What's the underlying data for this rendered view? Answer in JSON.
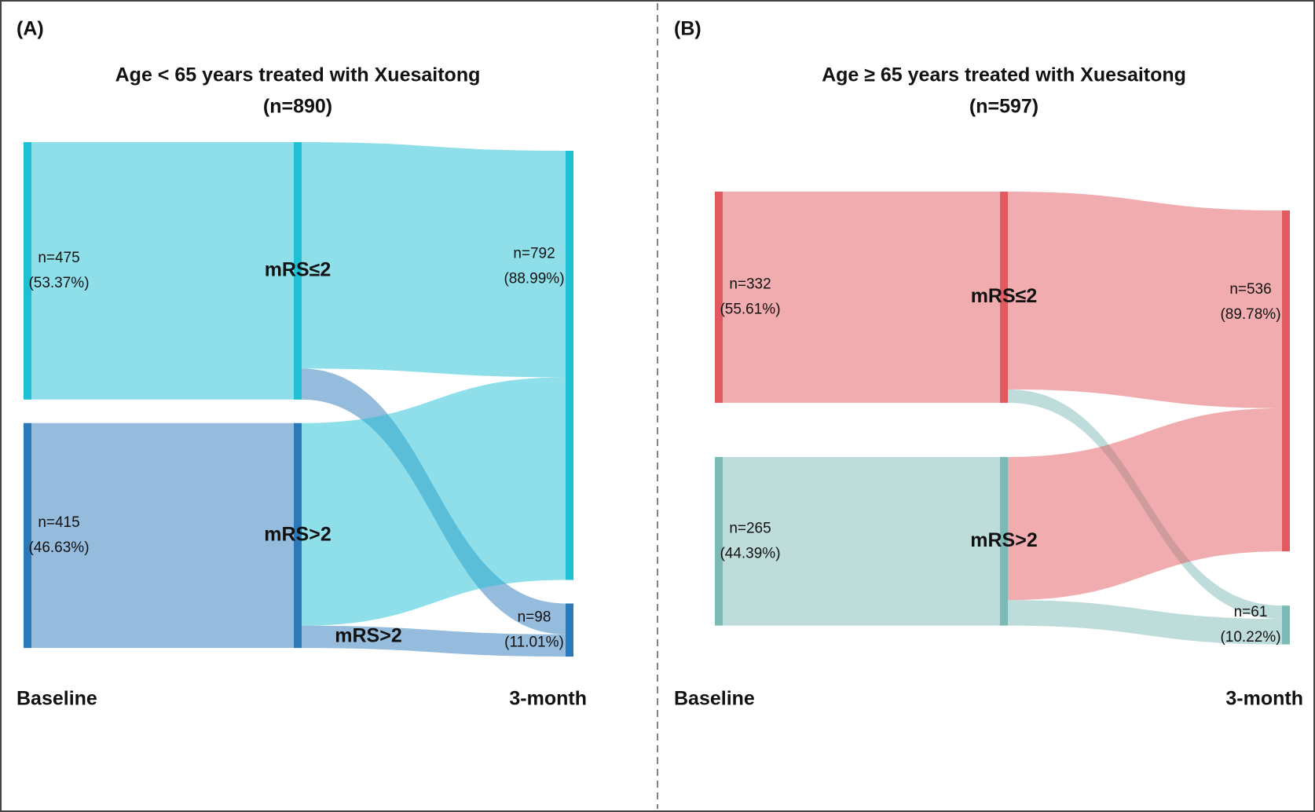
{
  "chart_data": [
    {
      "type": "sankey",
      "panel_label": "(A)",
      "title": "Age < 65 years treated with Xuesaitong",
      "subtitle": "(n=890)",
      "columns": [
        {
          "name": "Baseline",
          "nodes": [
            {
              "name": "mRS≤2",
              "value": 475,
              "value_label": "n=475",
              "percent": 53.37,
              "percent_label": "(53.37%)",
              "color": "#1fbfd6"
            },
            {
              "name": "mRS>2",
              "value": 415,
              "value_label": "n=415",
              "percent": 46.63,
              "percent_label": "(46.63%)",
              "color": "#2b79b9"
            }
          ]
        },
        {
          "name": "3-month",
          "nodes": [
            {
              "value": 792,
              "value_label": "n=792",
              "percent": 88.99,
              "percent_label": "(88.99%)",
              "color": "#1fbfd6"
            },
            {
              "value": 98,
              "value_label": "n=98",
              "percent": 11.01,
              "percent_label": "(11.01%)",
              "color": "#2b79b9"
            }
          ]
        }
      ],
      "links": [
        {
          "source": 0,
          "target": 0,
          "value": 418
        },
        {
          "source": 0,
          "target": 1,
          "value": 57
        },
        {
          "source": 1,
          "target": 0,
          "value": 374
        },
        {
          "source": 1,
          "target": 1,
          "value": 41,
          "label": "mRS>2"
        }
      ]
    },
    {
      "type": "sankey",
      "panel_label": "(B)",
      "title": "Age ≥ 65 years treated with Xuesaitong",
      "subtitle": "(n=597)",
      "columns": [
        {
          "name": "Baseline",
          "nodes": [
            {
              "name": "mRS≤2",
              "value": 332,
              "value_label": "n=332",
              "percent": 55.61,
              "percent_label": "(55.61%)",
              "color": "#e15a60"
            },
            {
              "name": "mRS>2",
              "value": 265,
              "value_label": "n=265",
              "percent": 44.39,
              "percent_label": "(44.39%)",
              "color": "#7cbab5"
            }
          ]
        },
        {
          "name": "3-month",
          "nodes": [
            {
              "value": 536,
              "value_label": "n=536",
              "percent": 89.78,
              "percent_label": "(89.78%)",
              "color": "#e15a60"
            },
            {
              "value": 61,
              "value_label": "n=61",
              "percent": 10.22,
              "percent_label": "(10.22%)",
              "color": "#7cbab5"
            }
          ]
        }
      ],
      "links": [
        {
          "source": 0,
          "target": 0,
          "value": 311
        },
        {
          "source": 0,
          "target": 1,
          "value": 21
        },
        {
          "source": 1,
          "target": 0,
          "value": 225
        },
        {
          "source": 1,
          "target": 1,
          "value": 40
        }
      ]
    }
  ]
}
